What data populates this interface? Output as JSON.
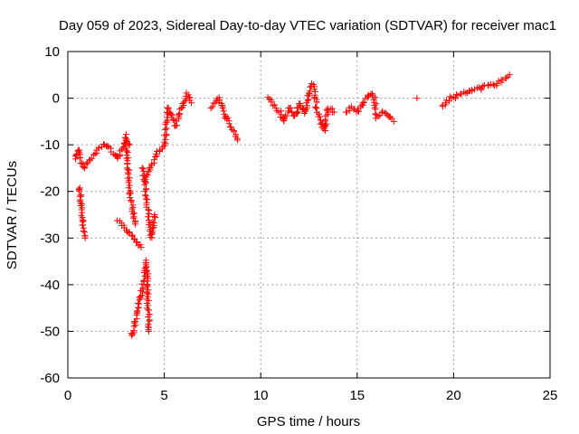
{
  "chart_data": {
    "type": "scatter",
    "title": "Day 059 of 2023, Sidereal Day-to-day VTEC variation (SDTVAR) for receiver mac1",
    "xlabel": "GPS time / hours",
    "ylabel": "SDTVAR / TECUs",
    "xlim": [
      0,
      25
    ],
    "ylim": [
      -60,
      10
    ],
    "xticks": [
      0,
      5,
      10,
      15,
      20,
      25
    ],
    "yticks": [
      -60,
      -50,
      -40,
      -30,
      -20,
      -10,
      0,
      10
    ],
    "grid": true,
    "marker": "+",
    "color": "#ff0000",
    "series": [
      {
        "name": "SDTVAR",
        "segments": [
          {
            "x": [
              0.4,
              0.55,
              0.7,
              0.85,
              1.0,
              1.2,
              1.4,
              1.6,
              1.8,
              2.0,
              2.2,
              2.4,
              2.6,
              2.8,
              3.0,
              3.2
            ],
            "y": [
              -13,
              -11,
              -14,
              -15,
              -14,
              -13,
              -12,
              -11,
              -10,
              -10,
              -11,
              -12,
              -13,
              -11,
              -9,
              -10
            ]
          },
          {
            "x": [
              0.6,
              0.65,
              0.7,
              0.75,
              0.8,
              0.85,
              0.9
            ],
            "y": [
              -19,
              -21,
              -23,
              -25,
              -27,
              -28,
              -30
            ]
          },
          {
            "x": [
              2.6,
              2.8,
              3.0,
              3.2,
              3.4,
              3.6,
              3.8
            ],
            "y": [
              -26,
              -27,
              -28,
              -29,
              -30,
              -31,
              -32
            ]
          },
          {
            "x": [
              3.0,
              3.1,
              3.2,
              3.3,
              3.4,
              3.5
            ],
            "y": [
              -8,
              -14,
              -20,
              -22,
              -25,
              -27
            ]
          },
          {
            "x": [
              3.3,
              3.4,
              3.5,
              3.6,
              3.7,
              3.8,
              3.9,
              4.0,
              4.1,
              4.2
            ],
            "y": [
              -51,
              -50,
              -48,
              -46,
              -44,
              -42,
              -40,
              -38,
              -35,
              -50
            ]
          },
          {
            "x": [
              3.9,
              4.0,
              4.1,
              4.2,
              4.3,
              4.4,
              4.5
            ],
            "y": [
              -15,
              -18,
              -22,
              -26,
              -30,
              -28,
              -25
            ]
          },
          {
            "x": [
              4.0,
              4.2,
              4.4,
              4.6,
              4.8,
              5.0,
              5.2,
              5.4,
              5.6,
              5.8,
              6.0,
              6.2,
              6.4
            ],
            "y": [
              -18,
              -16,
              -14,
              -12,
              -11,
              -10,
              -2,
              -4,
              -6,
              -3,
              -1,
              1,
              -1
            ]
          },
          {
            "x": [
              7.4,
              7.6,
              7.8,
              8.0,
              8.2,
              8.4,
              8.6,
              8.8
            ],
            "y": [
              -2,
              -1,
              0,
              -2,
              -4,
              -6,
              -7,
              -9
            ]
          },
          {
            "x": [
              10.4,
              11.0,
              11.2,
              11.5,
              11.8,
              12.0,
              12.3,
              12.5,
              12.7,
              12.9,
              13.1,
              13.3,
              13.5,
              13.8
            ],
            "y": [
              0,
              -3,
              -5,
              -2,
              -4,
              -1,
              -3,
              1,
              3,
              -2,
              -5,
              -7,
              -2,
              -3
            ]
          },
          {
            "x": [
              14.4,
              14.7,
              15.0,
              15.3,
              15.5,
              15.7,
              15.9,
              16.0,
              16.3,
              16.7,
              16.9
            ],
            "y": [
              -3,
              -2,
              -3,
              -1,
              0,
              1,
              0,
              -4,
              -3,
              -4,
              -5
            ]
          },
          {
            "x": [
              18.1
            ],
            "y": [
              0
            ]
          },
          {
            "x": [
              19.4,
              19.6,
              19.8,
              20.0,
              20.3,
              20.6,
              21.0,
              21.4,
              21.8,
              22.2,
              22.6,
              22.9
            ],
            "y": [
              -2,
              -1,
              0,
              0,
              1,
              1,
              2,
              2,
              3,
              3,
              4,
              5
            ]
          }
        ]
      }
    ]
  }
}
